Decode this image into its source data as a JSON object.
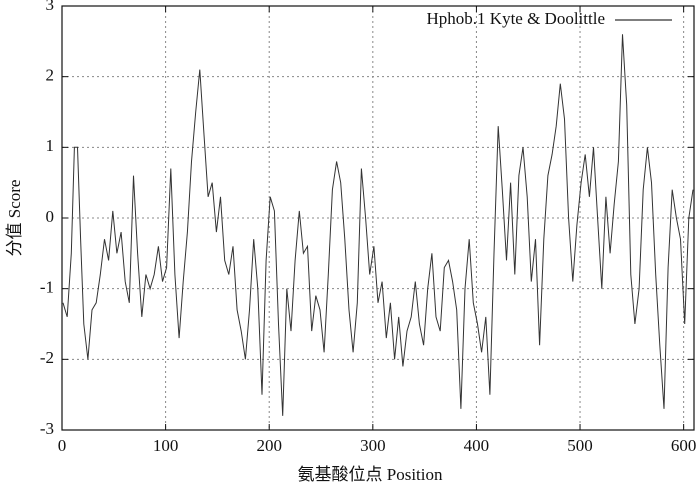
{
  "chart_data": {
    "type": "line",
    "xlabel": "氨基酸位点  Position",
    "ylabel": "分值  Score",
    "x": [
      1,
      5,
      9,
      12,
      15,
      18,
      21,
      25,
      29,
      33,
      37,
      41,
      45,
      49,
      53,
      57,
      61,
      65,
      69,
      73,
      77,
      81,
      85,
      89,
      93,
      97,
      101,
      105,
      109,
      113,
      117,
      121,
      125,
      129,
      133,
      137,
      141,
      145,
      149,
      153,
      157,
      161,
      165,
      169,
      173,
      177,
      181,
      185,
      189,
      193,
      197,
      201,
      205,
      209,
      213,
      217,
      221,
      225,
      229,
      233,
      237,
      241,
      245,
      249,
      253,
      257,
      261,
      265,
      269,
      273,
      277,
      281,
      285,
      289,
      293,
      297,
      301,
      305,
      309,
      313,
      317,
      321,
      325,
      329,
      333,
      337,
      341,
      345,
      349,
      353,
      357,
      361,
      365,
      369,
      373,
      377,
      381,
      385,
      389,
      393,
      397,
      401,
      405,
      409,
      413,
      417,
      421,
      425,
      429,
      433,
      437,
      441,
      445,
      449,
      453,
      457,
      461,
      465,
      469,
      473,
      477,
      481,
      485,
      489,
      493,
      497,
      501,
      505,
      509,
      513,
      517,
      521,
      525,
      529,
      533,
      537,
      541,
      545,
      549,
      553,
      557,
      561,
      565,
      569,
      573,
      577,
      581,
      585,
      589,
      593,
      597,
      601,
      605,
      609
    ],
    "series": [
      {
        "name": "Hphob.1 Kyte & Doolittle",
        "color": "#333333",
        "values": [
          -1.2,
          -1.4,
          -0.5,
          1.0,
          1.0,
          -0.3,
          -1.5,
          -2.0,
          -1.3,
          -1.2,
          -0.8,
          -0.3,
          -0.6,
          0.1,
          -0.5,
          -0.2,
          -0.9,
          -1.2,
          0.6,
          -0.5,
          -1.4,
          -0.8,
          -1.0,
          -0.8,
          -0.4,
          -0.9,
          -0.7,
          0.7,
          -0.8,
          -1.7,
          -0.9,
          -0.2,
          0.8,
          1.5,
          2.1,
          1.2,
          0.3,
          0.5,
          -0.2,
          0.3,
          -0.6,
          -0.8,
          -0.4,
          -1.3,
          -1.6,
          -2.0,
          -1.3,
          -0.3,
          -1.0,
          -2.5,
          -0.6,
          0.3,
          0.1,
          -1.5,
          -2.8,
          -1.0,
          -1.6,
          -0.6,
          0.1,
          -0.5,
          -0.4,
          -1.6,
          -1.1,
          -1.3,
          -1.9,
          -0.8,
          0.4,
          0.8,
          0.5,
          -0.3,
          -1.3,
          -1.9,
          -1.2,
          0.7,
          0.0,
          -0.8,
          -0.4,
          -1.2,
          -0.9,
          -1.7,
          -1.2,
          -2.0,
          -1.4,
          -2.1,
          -1.6,
          -1.4,
          -0.9,
          -1.5,
          -1.8,
          -1.0,
          -0.5,
          -1.4,
          -1.6,
          -0.7,
          -0.6,
          -0.9,
          -1.3,
          -2.7,
          -1.0,
          -0.3,
          -1.2,
          -1.5,
          -1.9,
          -1.4,
          -2.5,
          -0.5,
          1.3,
          0.4,
          -0.6,
          0.5,
          -0.8,
          0.6,
          1.0,
          0.3,
          -0.9,
          -0.3,
          -1.8,
          -0.3,
          0.6,
          0.9,
          1.3,
          1.9,
          1.4,
          0.0,
          -0.9,
          -0.1,
          0.5,
          0.9,
          0.3,
          1.0,
          0.0,
          -1.0,
          0.3,
          -0.5,
          0.2,
          0.8,
          2.6,
          1.6,
          -0.8,
          -1.5,
          -1.0,
          0.4,
          1.0,
          0.5,
          -0.8,
          -1.8,
          -2.7,
          -0.7,
          0.4,
          0.0,
          -0.3,
          -1.5,
          0.0,
          0.4
        ]
      }
    ],
    "xlim": [
      0,
      610
    ],
    "ylim": [
      -3,
      3
    ],
    "xticks": [
      0,
      100,
      200,
      300,
      400,
      500,
      600
    ],
    "yticks": [
      -3,
      -2,
      -1,
      0,
      1,
      2,
      3
    ],
    "grid": true,
    "legend": "upper right"
  }
}
